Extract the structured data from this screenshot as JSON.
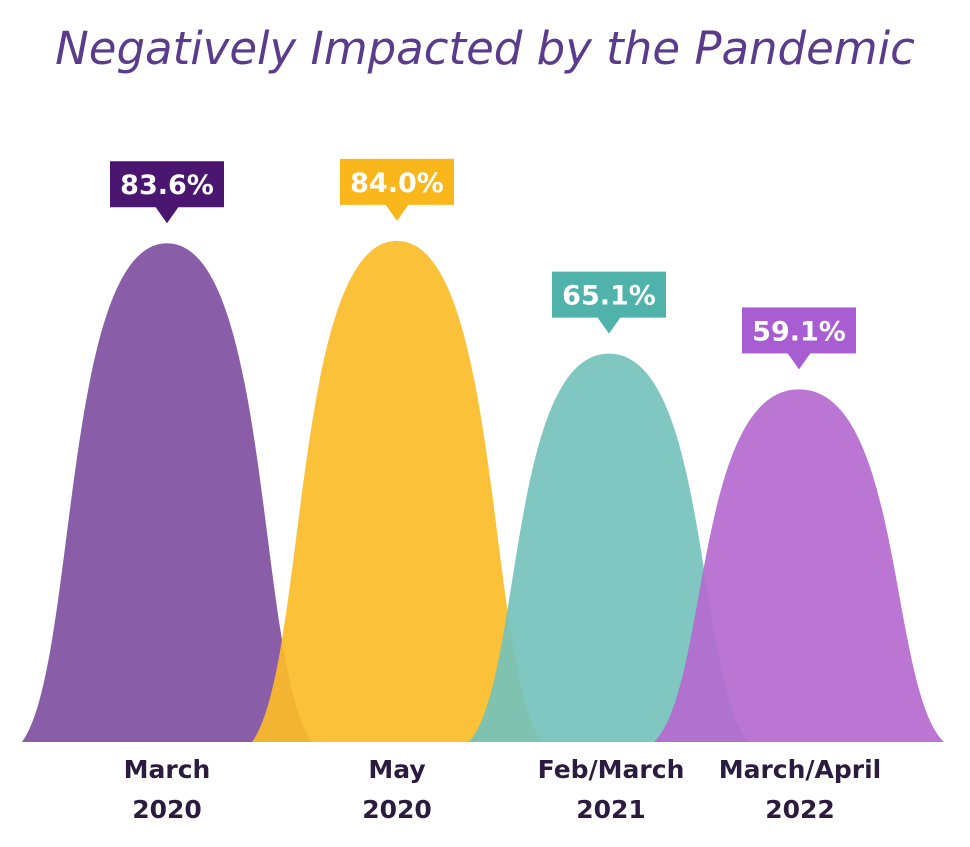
{
  "chart_data": {
    "type": "area",
    "title": "Negatively Impacted by the Pandemic",
    "categories": [
      {
        "line1": "March",
        "line2": "2020"
      },
      {
        "line1": "May",
        "line2": "2020"
      },
      {
        "line1": "Feb/March",
        "line2": "2021"
      },
      {
        "line1": "March/April",
        "line2": "2022"
      }
    ],
    "values": [
      83.6,
      84.0,
      65.1,
      59.1
    ],
    "value_labels": [
      "83.6%",
      "84.0%",
      "65.1%",
      "59.1%"
    ],
    "unit": "%",
    "ylim": [
      0,
      100
    ],
    "colors": [
      "#7f4f9f",
      "#fbbc27",
      "#74c2bb",
      "#b569cf"
    ],
    "label_colors": [
      "#4a1670",
      "#f9b71c",
      "#4fb3ab",
      "#a95dd2"
    ]
  }
}
